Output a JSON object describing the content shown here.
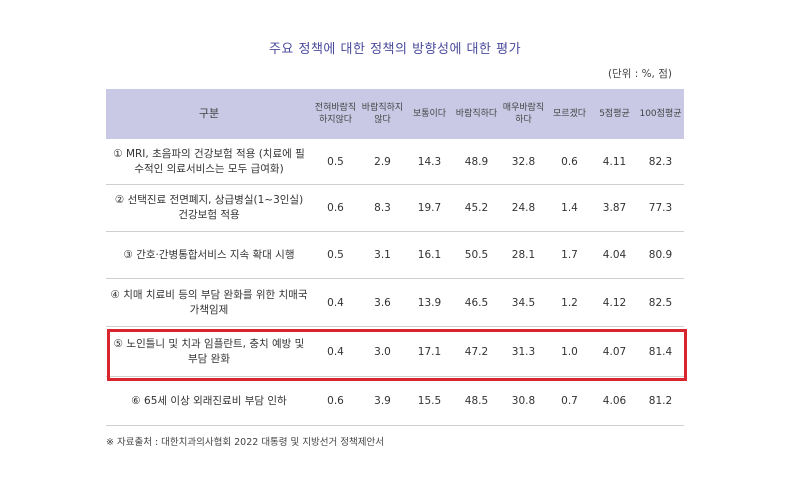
{
  "title": "주요 정책에 대한 정책의 방향성에 대한 평가",
  "unit": "(단위 : %, 점)",
  "headers": [
    "구분",
    "전혀바람직하지않다",
    "바람직하지않다",
    "보통이다",
    "바람직하다",
    "매우바람직하다",
    "모르겠다",
    "5점평균",
    "100점평균"
  ],
  "rows": [
    {
      "label": "① MRI, 초음파의 건강보험 적용 (치료에 필수적인 의료서비스는 모두 급여화)",
      "values": [
        "0.5",
        "2.9",
        "14.3",
        "48.9",
        "32.8",
        "0.6",
        "4.11",
        "82.3"
      ]
    },
    {
      "label": "② 선택진료 전면폐지, 상급병실(1~3인실) 건강보험 적용",
      "values": [
        "0.6",
        "8.3",
        "19.7",
        "45.2",
        "24.8",
        "1.4",
        "3.87",
        "77.3"
      ]
    },
    {
      "label": "③ 간호·간병통합서비스 지속 확대 시행",
      "values": [
        "0.5",
        "3.1",
        "16.1",
        "50.5",
        "28.1",
        "1.7",
        "4.04",
        "80.9"
      ]
    },
    {
      "label": "④ 치매 치료비 등의 부담 완화를 위한 치매국가책임제",
      "values": [
        "0.4",
        "3.6",
        "13.9",
        "46.5",
        "34.5",
        "1.2",
        "4.12",
        "82.5"
      ]
    },
    {
      "label": "⑤ 노인틀니 및 치과 임플란트, 충치 예방 및 부담 완화",
      "values": [
        "0.4",
        "3.0",
        "17.1",
        "47.2",
        "31.3",
        "1.0",
        "4.07",
        "81.4"
      ]
    },
    {
      "label": "⑥ 65세 이상 외래진료비 부담 인하",
      "values": [
        "0.6",
        "3.9",
        "15.5",
        "48.5",
        "30.8",
        "0.7",
        "4.06",
        "81.2"
      ]
    }
  ],
  "source": "※ 자료출처 : 대한치과의사협회 2022 대통령 및 지방선거 정책제안서",
  "colors": {
    "header_bg": "#c9c9e6",
    "title": "#4a4a9c",
    "highlight": "#d9262e"
  }
}
